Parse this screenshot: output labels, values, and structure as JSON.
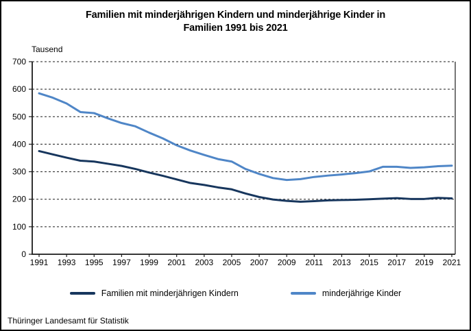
{
  "title": {
    "line1": "Familien mit minderjährigen Kindern und minderjährige Kinder in",
    "line2": "Familien 1991 bis 2021"
  },
  "axis_unit_label": "Tausend",
  "footer": "Thüringer Landesamt für Statistik",
  "colors": {
    "series_dark": "#17365D",
    "series_light": "#4F86C7",
    "axis": "#1a1a1a",
    "gridline": "#1a1a1a",
    "text": "#000000"
  },
  "legend": [
    {
      "label": "Familien mit minderjährigen Kindern",
      "color": "#17365D"
    },
    {
      "label": "minderjährige Kinder",
      "color": "#4F86C7"
    }
  ],
  "chart_data": {
    "type": "line",
    "title": "Familien mit minderjährigen Kindern und minderjährige Kinder in Familien 1991 bis 2021",
    "ylabel": "Tausend",
    "xlabel": "",
    "ylim": [
      0,
      700
    ],
    "ytick_step": 100,
    "grid": "horizontal-dashed",
    "legend_position": "bottom",
    "x": [
      1991,
      1992,
      1993,
      1994,
      1995,
      1996,
      1997,
      1998,
      1999,
      2000,
      2001,
      2002,
      2003,
      2004,
      2005,
      2006,
      2007,
      2008,
      2009,
      2010,
      2011,
      2012,
      2013,
      2014,
      2015,
      2016,
      2017,
      2018,
      2019,
      2020,
      2021
    ],
    "xtick_labels": [
      1991,
      1993,
      1995,
      1997,
      1999,
      2001,
      2003,
      2005,
      2007,
      2009,
      2011,
      2013,
      2015,
      2017,
      2019,
      2021
    ],
    "series": [
      {
        "name": "Familien mit minderjährigen Kindern",
        "color": "#17365D",
        "values": [
          375,
          363,
          351,
          340,
          337,
          329,
          321,
          310,
          297,
          285,
          272,
          259,
          252,
          243,
          236,
          221,
          208,
          199,
          194,
          191,
          193,
          196,
          197,
          198,
          200,
          202,
          204,
          201,
          201,
          205,
          203
        ]
      },
      {
        "name": "minderjährige Kinder",
        "color": "#4F86C7",
        "values": [
          585,
          569,
          548,
          517,
          513,
          494,
          477,
          465,
          442,
          421,
          396,
          377,
          361,
          346,
          337,
          310,
          292,
          277,
          270,
          273,
          281,
          286,
          290,
          295,
          301,
          318,
          318,
          314,
          316,
          320,
          322
        ]
      }
    ]
  }
}
